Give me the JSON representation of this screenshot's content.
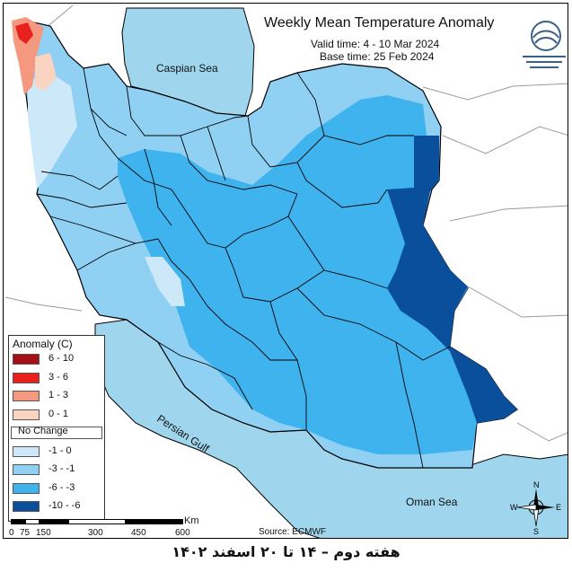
{
  "header": {
    "title": "Weekly Mean Temperature Anomaly",
    "valid_time": "Valid time: 4 - 10 Mar 2024",
    "base_time": "Base time: 25 Feb 2024"
  },
  "map_labels": {
    "caspian": "Caspian Sea",
    "persian_gulf": "Persian Gulf",
    "oman": "Oman Sea"
  },
  "legend": {
    "title": "Anomaly (C)",
    "items": [
      {
        "label": "6 - 10",
        "color": "#a50f15"
      },
      {
        "label": "3 - 6",
        "color": "#e8201e"
      },
      {
        "label": "1 - 3",
        "color": "#f4987f"
      },
      {
        "label": "0 - 1",
        "color": "#fbd3c1"
      },
      {
        "label": "No Change",
        "color": "#ffffff"
      },
      {
        "label": "-1 - 0",
        "color": "#cde8f8"
      },
      {
        "label": "-3 - -1",
        "color": "#8fd0f3"
      },
      {
        "label": "-6 - -3",
        "color": "#3fb3ee"
      },
      {
        "label": "-10 - -6",
        "color": "#0a4f9c"
      }
    ]
  },
  "scale": {
    "ticks": [
      "0",
      "75",
      "150",
      "300",
      "450",
      "600"
    ],
    "unit": "Km"
  },
  "compass": {
    "n": "N",
    "s": "S",
    "e": "E",
    "w": "W"
  },
  "source": "Source: ECMWF",
  "footer": "هفته دوم – ۱۴ تا ۲۰ اسفند ۱۴۰۲",
  "colors": {
    "sea": "#9fd6ee",
    "neighbor": "#ffffff",
    "border": "#000000"
  }
}
